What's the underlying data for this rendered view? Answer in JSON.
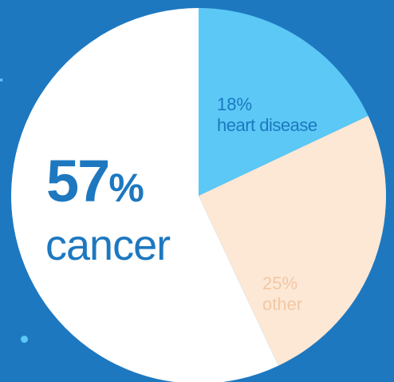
{
  "chart_data": {
    "type": "pie",
    "slices": [
      {
        "label": "heart disease",
        "value": 18,
        "pct_text": "18%",
        "color": "#5bc8f5",
        "text_color": "#1d78c0"
      },
      {
        "label": "other",
        "value": 25,
        "pct_text": "25%",
        "color": "#fde8d6",
        "text_color": "#f2c8a4"
      },
      {
        "label": "cancer",
        "value": 57,
        "pct_text": "57",
        "pct_symbol": "%",
        "color": "#ffffff",
        "text_color": "#1d78c0"
      }
    ],
    "start_angle_deg": 0,
    "direction": "clockwise",
    "grid": false,
    "legend": "none"
  },
  "background_color": "#1d78c0",
  "clipped_text": "r",
  "dot_color": "#5bc8f5"
}
